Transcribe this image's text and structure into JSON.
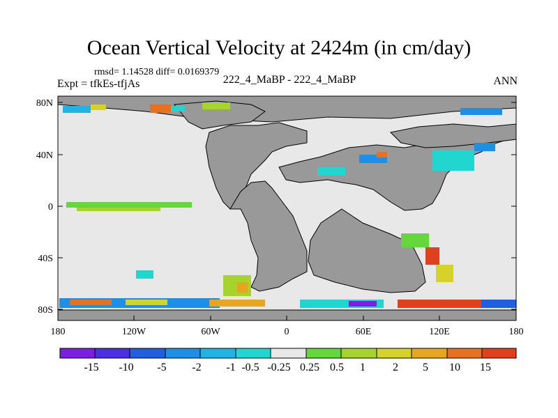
{
  "title": "Ocean Vertical Velocity at 2424m (in cm/day)",
  "stats": "rmsd= 1.14528 diff= 0.0169379",
  "expt_label": "Expt = tfkEs-tfjAs",
  "case_label": "222_4_MaBP - 222_4_MaBP",
  "season": "ANN",
  "colors": {
    "land": "#999999",
    "near_zero": "#e8e8e8",
    "scale": [
      "#7d1fe0",
      "#4b2fe0",
      "#2060e0",
      "#1e8fe6",
      "#20b4e6",
      "#22d6d0",
      "#e8e8e8",
      "#64d83a",
      "#a6d32c",
      "#d6d229",
      "#e8a620",
      "#e67120",
      "#e0401c"
    ]
  },
  "map": {
    "lat_ticks": [
      "80N",
      "40N",
      "0",
      "40S",
      "80S"
    ],
    "lon_ticks": [
      "180",
      "120W",
      "60W",
      "0",
      "60E",
      "120E",
      "180"
    ]
  },
  "colorbar": {
    "labels": [
      "-15",
      "-10",
      "-5",
      "-2",
      "-1",
      "-0.5",
      "-0.25",
      "0.25",
      "0.5",
      "1",
      "2",
      "5",
      "10",
      "15"
    ]
  }
}
